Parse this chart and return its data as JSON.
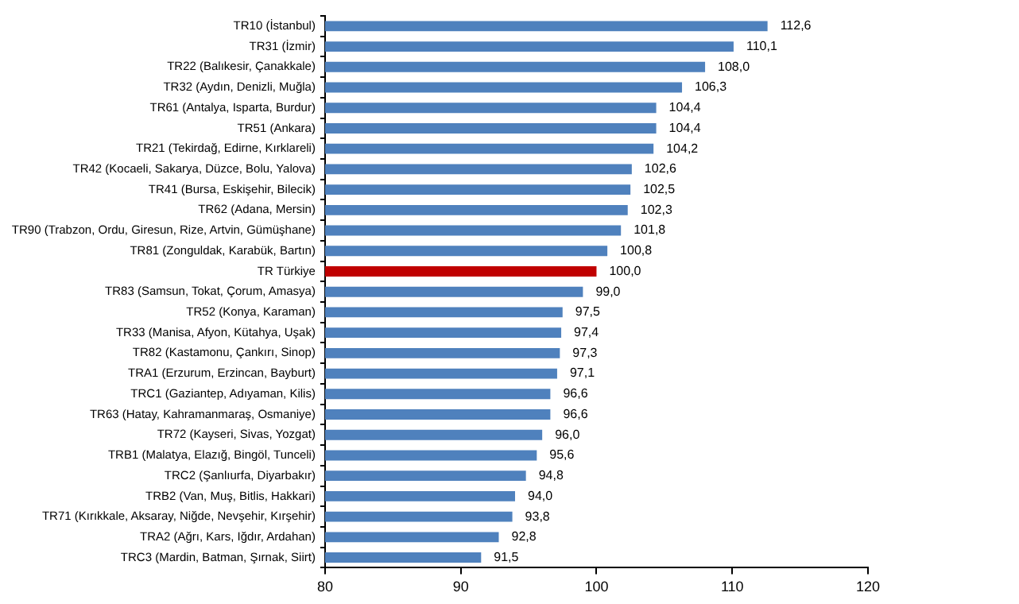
{
  "chart_data": {
    "type": "bar",
    "orientation": "horizontal",
    "categories": [
      "TR10 (İstanbul)",
      "TR31 (İzmir)",
      "TR22 (Balıkesir, Çanakkale)",
      "TR32 (Aydın, Denizli, Muğla)",
      "TR61 (Antalya, Isparta, Burdur)",
      "TR51 (Ankara)",
      "TR21 (Tekirdağ, Edirne, Kırklareli)",
      "TR42 (Kocaeli, Sakarya, Düzce, Bolu, Yalova)",
      "TR41 (Bursa, Eskişehir, Bilecik)",
      "TR62 (Adana, Mersin)",
      "TR90 (Trabzon, Ordu, Giresun, Rize, Artvin, Gümüşhane)",
      "TR81 (Zonguldak, Karabük, Bartın)",
      "TR Türkiye",
      "TR83 (Samsun, Tokat, Çorum, Amasya)",
      "TR52 (Konya, Karaman)",
      "TR33 (Manisa, Afyon, Kütahya, Uşak)",
      "TR82 (Kastamonu, Çankırı, Sinop)",
      "TRA1 (Erzurum, Erzincan, Bayburt)",
      "TRC1 (Gaziantep, Adıyaman, Kilis)",
      "TR63 (Hatay, Kahramanmaraş, Osmaniye)",
      "TR72 (Kayseri, Sivas, Yozgat)",
      "TRB1 (Malatya, Elazığ, Bingöl, Tunceli)",
      "TRC2 (Şanlıurfa, Diyarbakır)",
      "TRB2 (Van, Muş, Bitlis, Hakkari)",
      "TR71 (Kırıkkale, Aksaray, Niğde, Nevşehir, Kırşehir)",
      "TRA2 (Ağrı, Kars, Iğdır, Ardahan)",
      "TRC3 (Mardin, Batman, Şırnak, Siirt)"
    ],
    "values": [
      112.6,
      110.1,
      108.0,
      106.3,
      104.4,
      104.4,
      104.2,
      102.6,
      102.5,
      102.3,
      101.8,
      100.8,
      100.0,
      99.0,
      97.5,
      97.4,
      97.3,
      97.1,
      96.6,
      96.6,
      96.0,
      95.6,
      94.8,
      94.0,
      93.8,
      92.8,
      91.5
    ],
    "value_labels": [
      "112,6",
      "110,1",
      "108,0",
      "106,3",
      "104,4",
      "104,4",
      "104,2",
      "102,6",
      "102,5",
      "102,3",
      "101,8",
      "100,8",
      "100,0",
      "99,0",
      "97,5",
      "97,4",
      "97,3",
      "97,1",
      "96,6",
      "96,6",
      "96,0",
      "95,6",
      "94,8",
      "94,0",
      "93,8",
      "92,8",
      "91,5"
    ],
    "colors": [
      "#4f81bd",
      "#4f81bd",
      "#4f81bd",
      "#4f81bd",
      "#4f81bd",
      "#4f81bd",
      "#4f81bd",
      "#4f81bd",
      "#4f81bd",
      "#4f81bd",
      "#4f81bd",
      "#4f81bd",
      "#c00000",
      "#4f81bd",
      "#4f81bd",
      "#4f81bd",
      "#4f81bd",
      "#4f81bd",
      "#4f81bd",
      "#4f81bd",
      "#4f81bd",
      "#4f81bd",
      "#4f81bd",
      "#4f81bd",
      "#4f81bd",
      "#4f81bd",
      "#4f81bd"
    ],
    "xlim": [
      80,
      120
    ],
    "xticks": [
      80,
      90,
      100,
      110,
      120
    ],
    "grid": false,
    "legend": false
  }
}
